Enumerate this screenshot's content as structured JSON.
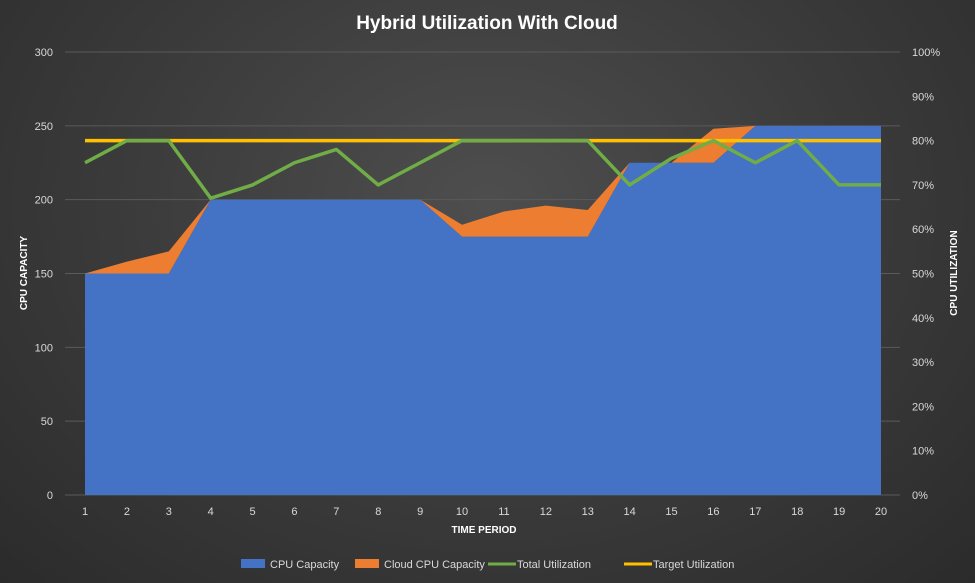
{
  "chart_data": {
    "type": "area",
    "title": "Hybrid Utilization With Cloud",
    "xlabel": "TIME PERIOD",
    "ylabel": "CPU CAPACITY",
    "y2label": "CPU UTILIZATION",
    "categories": [
      "1",
      "2",
      "3",
      "4",
      "5",
      "6",
      "7",
      "8",
      "9",
      "10",
      "11",
      "12",
      "13",
      "14",
      "15",
      "16",
      "17",
      "18",
      "19",
      "20"
    ],
    "ylim": [
      0,
      300
    ],
    "yticks": [
      0,
      50,
      100,
      150,
      200,
      250,
      300
    ],
    "y2lim": [
      0,
      100
    ],
    "y2ticks": [
      "0%",
      "10%",
      "20%",
      "30%",
      "40%",
      "50%",
      "60%",
      "70%",
      "80%",
      "90%",
      "100%"
    ],
    "grid": true,
    "legend_position": "bottom",
    "series": [
      {
        "name": "CPU Capacity",
        "type": "area",
        "axis": "left",
        "color": "#4472c4",
        "values": [
          150,
          150,
          150,
          200,
          200,
          200,
          200,
          200,
          200,
          175,
          175,
          175,
          175,
          225,
          225,
          225,
          250,
          250,
          250,
          250
        ]
      },
      {
        "name": "Cloud CPU Capacity",
        "type": "area",
        "axis": "left",
        "color": "#ed7d31",
        "values": [
          0,
          8,
          15,
          0,
          0,
          0,
          0,
          0,
          0,
          8,
          17,
          21,
          18,
          0,
          0,
          23,
          0,
          0,
          0,
          0
        ]
      },
      {
        "name": "Total Utilization",
        "type": "line",
        "axis": "right",
        "color": "#70ad47",
        "values": [
          75,
          80,
          80,
          67,
          70,
          75,
          78,
          70,
          75,
          80,
          80,
          80,
          80,
          70,
          76,
          80,
          75,
          80,
          70,
          70
        ]
      },
      {
        "name": "Target Utilization",
        "type": "line",
        "axis": "right",
        "color": "#ffc000",
        "values": [
          80,
          80,
          80,
          80,
          80,
          80,
          80,
          80,
          80,
          80,
          80,
          80,
          80,
          80,
          80,
          80,
          80,
          80,
          80,
          80
        ]
      }
    ]
  }
}
